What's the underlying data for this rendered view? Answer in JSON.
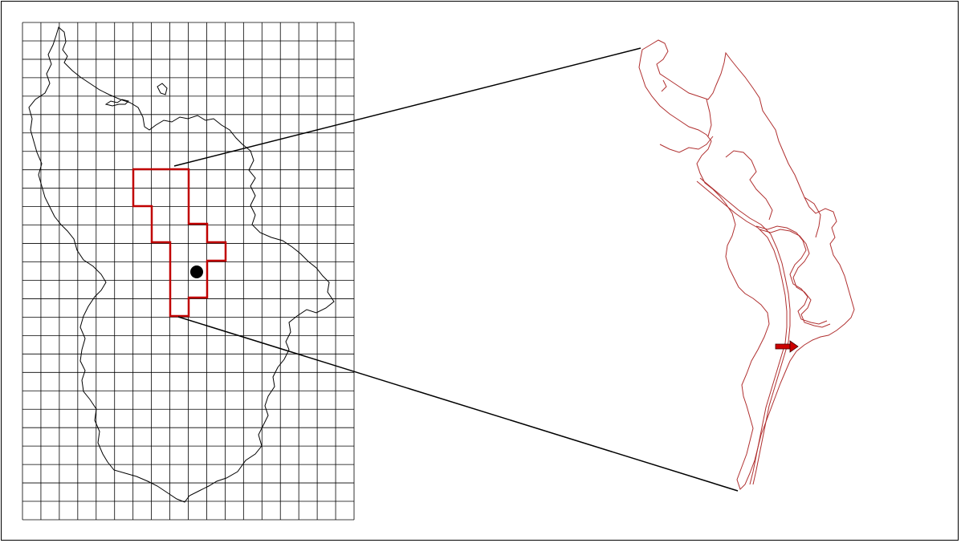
{
  "figure": {
    "grid": {
      "columns": 18,
      "rows": 27
    },
    "colors": {
      "grid_line": "#000000",
      "outline": "#000000",
      "selection": "#c00000",
      "map_line": "#b03030",
      "marker": "#000000",
      "arrow": "#cc0000",
      "connector": "#000000"
    },
    "icons": {
      "marker": "black-dot-icon",
      "arrow": "red-arrow-icon"
    }
  }
}
